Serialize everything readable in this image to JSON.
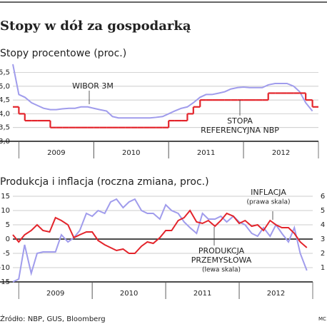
{
  "title": "Stopy w dół za gospodarką",
  "source": "Źródło: NBP, GUS, Bloomberg",
  "signature": "MC",
  "chart_data": [
    {
      "type": "line",
      "title": "Stopy procentowe (proc.)",
      "x": [
        2008.92,
        2009.0,
        2009.08,
        2009.17,
        2009.25,
        2009.33,
        2009.42,
        2009.5,
        2009.58,
        2009.67,
        2009.75,
        2009.83,
        2009.92,
        2010.0,
        2010.08,
        2010.17,
        2010.25,
        2010.33,
        2010.42,
        2010.5,
        2010.58,
        2010.67,
        2010.75,
        2010.83,
        2010.92,
        2011.0,
        2011.08,
        2011.17,
        2011.25,
        2011.33,
        2011.42,
        2011.5,
        2011.58,
        2011.67,
        2011.75,
        2011.83,
        2011.92,
        2012.0,
        2012.08,
        2012.17,
        2012.25,
        2012.33,
        2012.42,
        2012.5,
        2012.58,
        2012.67,
        2012.75,
        2012.83,
        2012.92
      ],
      "xlim": [
        2008.92,
        2013.0
      ],
      "xticks": [
        {
          "value": 2009.5,
          "label": "2009"
        },
        {
          "value": 2010.5,
          "label": "2010"
        },
        {
          "value": 2011.5,
          "label": "2011"
        },
        {
          "value": 2012.5,
          "label": "2012"
        }
      ],
      "ylim": [
        3.0,
        5.8
      ],
      "yticks": [
        {
          "value": 3.0,
          "label": "3,0"
        },
        {
          "value": 3.5,
          "label": "3,5"
        },
        {
          "value": 4.0,
          "label": "4,0"
        },
        {
          "value": 4.5,
          "label": "4,5"
        },
        {
          "value": 5.0,
          "label": "5,0"
        },
        {
          "value": 5.5,
          "label": "5,5"
        }
      ],
      "grid": true,
      "series": [
        {
          "name": [
            "WIBOR 3M"
          ],
          "color": "#a09cec",
          "shape": "line",
          "values": [
            5.8,
            4.7,
            4.6,
            4.4,
            4.3,
            4.2,
            4.15,
            4.15,
            4.18,
            4.2,
            4.2,
            4.25,
            4.25,
            4.2,
            4.15,
            4.1,
            3.9,
            3.85,
            3.85,
            3.85,
            3.85,
            3.85,
            3.85,
            3.87,
            3.9,
            4.0,
            4.1,
            4.2,
            4.25,
            4.4,
            4.6,
            4.7,
            4.7,
            4.75,
            4.8,
            4.9,
            4.95,
            4.97,
            4.95,
            4.95,
            4.95,
            5.05,
            5.1,
            5.1,
            5.1,
            5.0,
            4.8,
            4.4,
            4.1
          ]
        },
        {
          "name": [
            "STOPA",
            "REFERENCYJNA NBP"
          ],
          "color": "#e3242b",
          "shape": "step",
          "values": [
            4.25,
            4.0,
            3.75,
            3.75,
            3.75,
            3.75,
            3.5,
            3.5,
            3.5,
            3.5,
            3.5,
            3.5,
            3.5,
            3.5,
            3.5,
            3.5,
            3.5,
            3.5,
            3.5,
            3.5,
            3.5,
            3.5,
            3.5,
            3.5,
            3.5,
            3.75,
            3.75,
            3.75,
            4.0,
            4.25,
            4.5,
            4.5,
            4.5,
            4.5,
            4.5,
            4.5,
            4.5,
            4.5,
            4.5,
            4.5,
            4.5,
            4.75,
            4.75,
            4.75,
            4.75,
            4.75,
            4.75,
            4.5,
            4.25
          ]
        }
      ]
    },
    {
      "type": "line",
      "title": "Produkcja i inflacja (roczna zmiana, proc.)",
      "x": [
        2008.92,
        2009.0,
        2009.08,
        2009.17,
        2009.25,
        2009.33,
        2009.42,
        2009.5,
        2009.58,
        2009.67,
        2009.75,
        2009.83,
        2009.92,
        2010.0,
        2010.08,
        2010.17,
        2010.25,
        2010.33,
        2010.42,
        2010.5,
        2010.58,
        2010.67,
        2010.75,
        2010.83,
        2010.92,
        2011.0,
        2011.08,
        2011.17,
        2011.25,
        2011.33,
        2011.42,
        2011.5,
        2011.58,
        2011.67,
        2011.75,
        2011.83,
        2011.92,
        2012.0,
        2012.08,
        2012.17,
        2012.25,
        2012.33,
        2012.42,
        2012.5,
        2012.58,
        2012.67,
        2012.75,
        2012.83,
        2012.92
      ],
      "xlim": [
        2008.92,
        2013.0
      ],
      "xticks": [
        {
          "value": 2009.5,
          "label": "2009"
        },
        {
          "value": 2010.5,
          "label": "2010"
        },
        {
          "value": 2011.5,
          "label": "2011"
        },
        {
          "value": 2012.5,
          "label": "2012"
        }
      ],
      "ylim": [
        -15,
        15
      ],
      "yticks": [
        -15,
        -10,
        -5,
        0,
        5,
        10,
        15
      ],
      "y2lim": [
        0,
        6
      ],
      "y2ticks": [
        1,
        2,
        3,
        4,
        5,
        6
      ],
      "grid": true,
      "series": [
        {
          "name": [
            "PRODUKCJA",
            "PRZEMYSŁOWA"
          ],
          "note": "(lewa skala)",
          "color": "#a09cec",
          "shape": "line",
          "values": [
            -15,
            -14,
            -2,
            -12,
            -5,
            -4.5,
            -4.5,
            -4.5,
            1.5,
            -1,
            0.5,
            3,
            9,
            8,
            10,
            9,
            13,
            14,
            11,
            13,
            14,
            10,
            9,
            9,
            7,
            12,
            10,
            9,
            6,
            4,
            2,
            9,
            7,
            7,
            8,
            6,
            8,
            6,
            5,
            2,
            1,
            4,
            1,
            5,
            2,
            -1,
            4,
            -5,
            -11
          ]
        },
        {
          "name": [
            "INFLACJA"
          ],
          "note": "(prawa skala)",
          "color": "#e3242b",
          "shape": "line",
          "axis": "y2",
          "values": [
            3.3,
            2.8,
            3.3,
            3.6,
            4.0,
            3.6,
            3.5,
            4.5,
            4.3,
            4.0,
            3.1,
            3.3,
            3.5,
            3.5,
            2.9,
            2.6,
            2.4,
            2.2,
            2.3,
            2.0,
            2.0,
            2.5,
            2.8,
            2.7,
            3.1,
            3.6,
            3.6,
            4.3,
            4.5,
            5.0,
            4.2,
            4.1,
            4.3,
            3.9,
            4.3,
            4.8,
            4.6,
            4.1,
            4.3,
            3.9,
            4.0,
            3.6,
            4.3,
            4.0,
            3.8,
            3.8,
            3.4,
            2.8,
            2.4
          ]
        }
      ]
    }
  ]
}
